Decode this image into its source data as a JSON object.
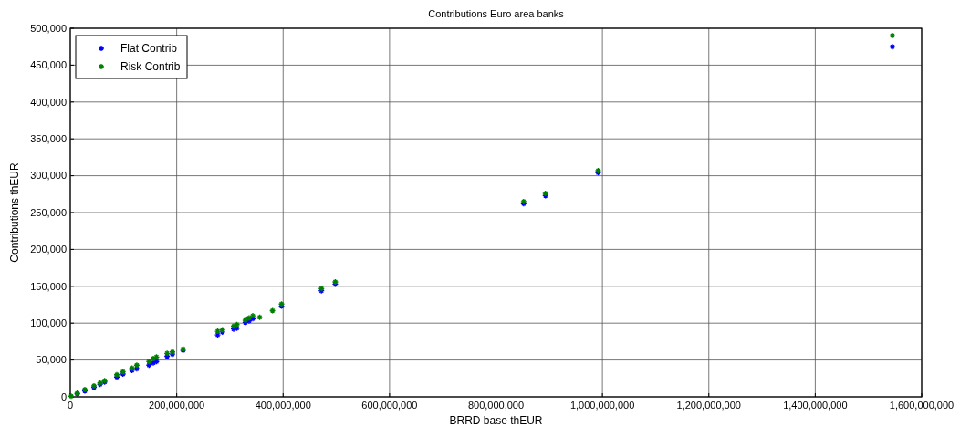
{
  "chart_data": {
    "type": "scatter",
    "title": "Contributions Euro area banks",
    "xlabel": "BRRD base thEUR",
    "ylabel": "Contributions thEUR",
    "xlim": [
      0,
      1600000000
    ],
    "ylim": [
      0,
      500000
    ],
    "xticks": [
      0,
      {
        "value": 200000000,
        "label": "200,000,000"
      },
      {
        "value": 400000000,
        "label": "400,000,000"
      },
      {
        "value": 600000000,
        "label": "600,000,000"
      },
      {
        "value": 800000000,
        "label": "800,000,000"
      },
      {
        "value": 1000000000,
        "label": "1,000,000,000"
      },
      {
        "value": 1200000000,
        "label": "1,200,000,000"
      },
      {
        "value": 1400000000,
        "label": "1,400,000,000"
      },
      {
        "value": 1600000000,
        "label": "1,600,000,000"
      }
    ],
    "yticks": [
      0,
      {
        "value": 50000,
        "label": "50,000"
      },
      {
        "value": 100000,
        "label": "100,000"
      },
      {
        "value": 150000,
        "label": "150,000"
      },
      {
        "value": 200000,
        "label": "200,000"
      },
      {
        "value": 250000,
        "label": "250,000"
      },
      {
        "value": 300000,
        "label": "300,000"
      },
      {
        "value": 350000,
        "label": "350,000"
      },
      {
        "value": 400000,
        "label": "400,000"
      },
      {
        "value": 450000,
        "label": "450,000"
      },
      {
        "value": 500000,
        "label": "500,000"
      }
    ],
    "grid": true,
    "legend": "top left",
    "marker": "cross",
    "series": [
      {
        "name": "Flat Contrib",
        "color": "#0000ff",
        "x": [
          13200000,
          27400000,
          44600000,
          56000000,
          64600000,
          87500000,
          99000000,
          116000000,
          125000000,
          148000000,
          156000000,
          162000000,
          182000000,
          192000000,
          212000000,
          277000000,
          286000000,
          307000000,
          313000000,
          329000000,
          336000000,
          343000000,
          397000000,
          472000000,
          498000000,
          852000000,
          893000000,
          992000000,
          1545000000
        ],
        "values": [
          4000,
          8000,
          13000,
          17000,
          20000,
          27000,
          31000,
          36000,
          38000,
          43000,
          46000,
          48000,
          55000,
          58000,
          63000,
          84000,
          88000,
          92000,
          93000,
          101000,
          103000,
          106000,
          123000,
          144000,
          153000,
          262000,
          273000,
          304000,
          475000
        ]
      },
      {
        "name": "Risk Contrib",
        "color": "#008000",
        "x": [
          1700000,
          13200000,
          27400000,
          44600000,
          56000000,
          64600000,
          87500000,
          99000000,
          116000000,
          125000000,
          148000000,
          156000000,
          162000000,
          182000000,
          192000000,
          212000000,
          277000000,
          286000000,
          307000000,
          313000000,
          329000000,
          336000000,
          343000000,
          356000000,
          380000000,
          397000000,
          472000000,
          498000000,
          852000000,
          893000000,
          992000000,
          1545000000
        ],
        "values": [
          1000,
          5000,
          10000,
          15000,
          19000,
          22000,
          30000,
          34000,
          39000,
          43000,
          48000,
          52000,
          54000,
          59000,
          61000,
          65000,
          89000,
          91000,
          96000,
          98000,
          104000,
          107000,
          110000,
          108000,
          117000,
          126000,
          147000,
          156000,
          265000,
          276000,
          307000,
          490000
        ]
      }
    ]
  }
}
